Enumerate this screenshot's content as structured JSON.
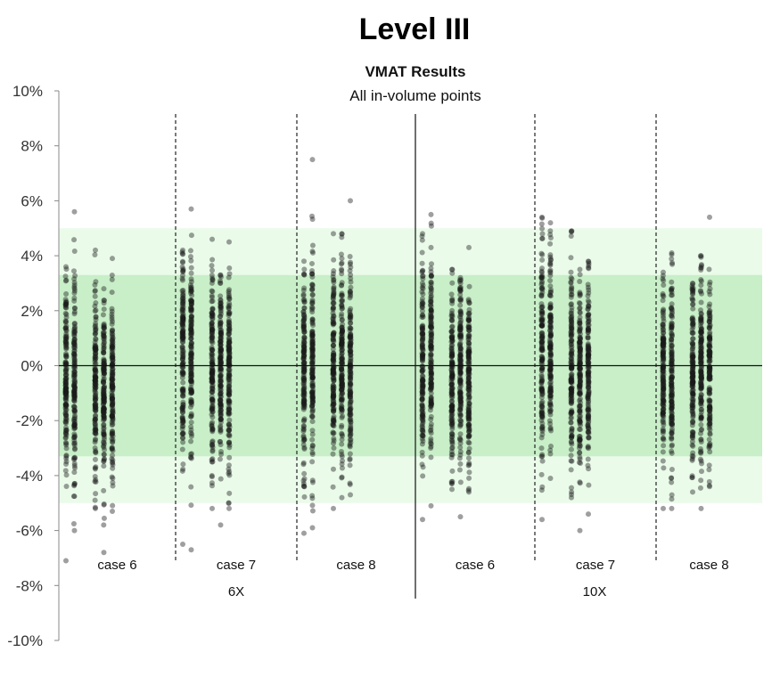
{
  "page": {
    "title": "Level III"
  },
  "chart_data": {
    "type": "scatter",
    "title": "VMAT Results",
    "subtitle": "All in-volume points",
    "ylim": [
      -10,
      10
    ],
    "y_ticks": [
      "10%",
      "8%",
      "6%",
      "4%",
      "2%",
      "0%",
      "-2%",
      "-4%",
      "-6%",
      "-8%",
      "-10%"
    ],
    "y_tick_values": [
      10,
      8,
      6,
      4,
      2,
      0,
      -2,
      -4,
      -6,
      -8,
      -10
    ],
    "bands": [
      {
        "name": "outer",
        "from": -5,
        "to": 5,
        "color": "#eafbea"
      },
      {
        "name": "inner",
        "from": -3.3,
        "to": 3.3,
        "color": "#c8efc8"
      }
    ],
    "groups": [
      {
        "label": "6X",
        "cases": [
          {
            "label": "case 6",
            "columns": [
              {
                "min": -7.1,
                "max": 3.6,
                "center": -0.4,
                "spread": 1.8
              },
              {
                "min": -6.0,
                "max": 5.6,
                "center": -0.6,
                "spread": 1.8
              },
              {
                "min": -5.2,
                "max": 4.2,
                "center": -0.8,
                "spread": 1.6
              },
              {
                "min": -6.8,
                "max": 2.8,
                "center": -1.0,
                "spread": 1.6
              },
              {
                "min": -5.3,
                "max": 3.9,
                "center": -0.9,
                "spread": 1.5
              }
            ]
          },
          {
            "label": "case 7",
            "columns": [
              {
                "min": -6.5,
                "max": 4.2,
                "center": 0.2,
                "spread": 1.9
              },
              {
                "min": -6.7,
                "max": 5.7,
                "center": 0.3,
                "spread": 1.9
              },
              {
                "min": -5.2,
                "max": 4.6,
                "center": 0.0,
                "spread": 1.8
              },
              {
                "min": -5.8,
                "max": 3.3,
                "center": -0.3,
                "spread": 1.6
              },
              {
                "min": -5.2,
                "max": 4.5,
                "center": -0.2,
                "spread": 1.7
              }
            ]
          },
          {
            "label": "case 8",
            "columns": [
              {
                "min": -6.1,
                "max": 3.8,
                "center": -0.1,
                "spread": 1.8
              },
              {
                "min": -5.9,
                "max": 7.5,
                "center": -0.2,
                "spread": 1.9
              },
              {
                "min": -5.2,
                "max": 4.8,
                "center": 0.1,
                "spread": 1.7
              },
              {
                "min": -4.8,
                "max": 4.8,
                "center": -0.1,
                "spread": 1.8
              },
              {
                "min": -4.7,
                "max": 6.0,
                "center": 0.0,
                "spread": 1.8
              }
            ]
          }
        ]
      },
      {
        "label": "10X",
        "cases": [
          {
            "label": "case 6",
            "columns": [
              {
                "min": -5.6,
                "max": 4.8,
                "center": 0.2,
                "spread": 1.8
              },
              {
                "min": -5.1,
                "max": 5.5,
                "center": 0.3,
                "spread": 1.9
              },
              {
                "min": -4.5,
                "max": 3.5,
                "center": -0.4,
                "spread": 1.6
              },
              {
                "min": -5.5,
                "max": 3.2,
                "center": -0.2,
                "spread": 1.6
              },
              {
                "min": -4.6,
                "max": 4.3,
                "center": -0.4,
                "spread": 1.6
              }
            ]
          },
          {
            "label": "case 7",
            "columns": [
              {
                "min": -5.6,
                "max": 5.4,
                "center": 0.4,
                "spread": 2.0
              },
              {
                "min": -4.1,
                "max": 5.2,
                "center": 0.5,
                "spread": 1.9
              },
              {
                "min": -4.8,
                "max": 4.9,
                "center": 0.0,
                "spread": 1.9
              },
              {
                "min": -6.0,
                "max": 3.5,
                "center": -0.2,
                "spread": 1.7
              },
              {
                "min": -5.4,
                "max": 3.8,
                "center": 0.0,
                "spread": 1.6
              }
            ]
          },
          {
            "label": "case 8",
            "columns": [
              {
                "min": -5.2,
                "max": 3.4,
                "center": -0.5,
                "spread": 1.6
              },
              {
                "min": -5.2,
                "max": 4.1,
                "center": -0.2,
                "spread": 1.7
              },
              {
                "min": -4.6,
                "max": 3.0,
                "center": -0.3,
                "spread": 1.6
              },
              {
                "min": -5.2,
                "max": 4.0,
                "center": -0.1,
                "spread": 1.6
              },
              {
                "min": -4.4,
                "max": 5.4,
                "center": -0.2,
                "spread": 1.6
              }
            ]
          }
        ]
      }
    ],
    "points_per_column": 150,
    "point_color": "#1a1a1a",
    "point_opacity": 0.42,
    "grid": false
  }
}
